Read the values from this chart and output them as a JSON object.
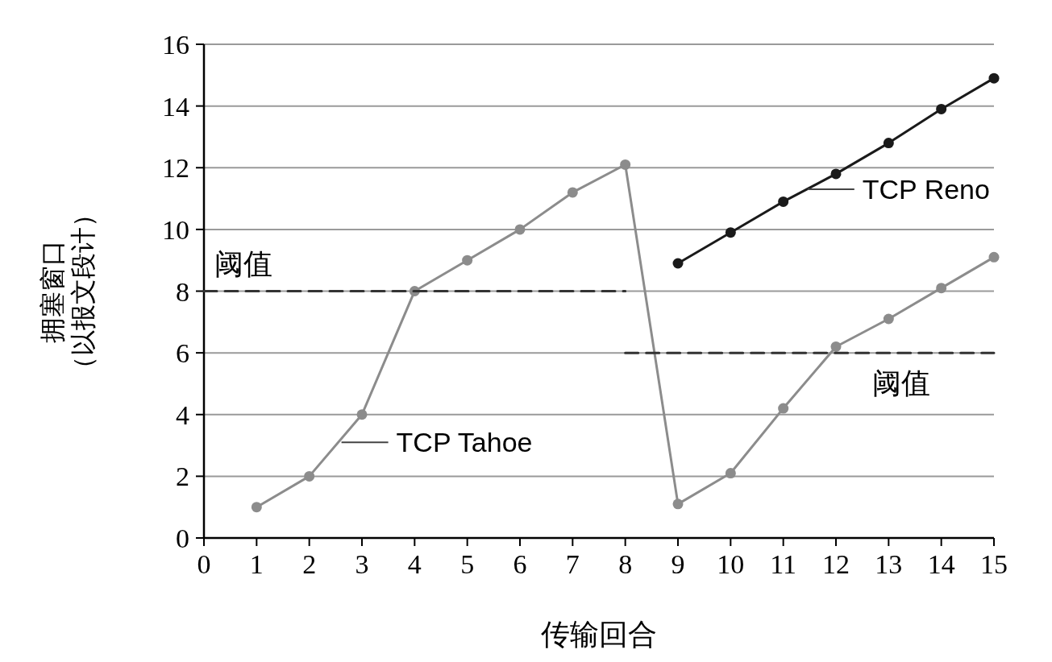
{
  "chart_data": {
    "type": "line",
    "xlabel": "传输回合",
    "ylabel": "拥塞窗口（以报文段计）",
    "xlim": [
      0,
      15
    ],
    "xticks": [
      0,
      1,
      2,
      3,
      4,
      5,
      6,
      7,
      8,
      9,
      10,
      11,
      12,
      13,
      14,
      15
    ],
    "ylim": [
      0,
      16
    ],
    "yticks": [
      0,
      2,
      4,
      6,
      8,
      10,
      12,
      14,
      16
    ],
    "grid": "y",
    "marker": "circle",
    "series": [
      {
        "color": "#8c8c8c",
        "x": [
          1,
          2,
          3,
          4,
          5,
          6,
          7,
          8,
          9,
          10,
          11,
          12,
          13,
          14,
          15
        ],
        "values": [
          1,
          2,
          4,
          8,
          9,
          10,
          11.2,
          12.1,
          1.1,
          2.1,
          4.2,
          6.2,
          7.1,
          8.1,
          9.1
        ]
      },
      {
        "color": "#1a1a1a",
        "x": [
          9,
          10,
          11,
          12,
          13,
          14,
          15
        ],
        "values": [
          8.9,
          9.9,
          10.9,
          11.8,
          12.8,
          13.9,
          14.9
        ]
      },
      {
        "color": "#333333",
        "x": [
          0,
          8
        ],
        "values": [
          8,
          8
        ],
        "line_style": "dashed",
        "marker": "none"
      },
      {
        "color": "#333333",
        "x": [
          8,
          15
        ],
        "values": [
          6,
          6
        ],
        "line_style": "dashed",
        "marker": "none"
      }
    ],
    "annotations": [
      {
        "text": "阈值",
        "x": 0.5,
        "y": 8
      },
      {
        "text": "TCP Tahoe",
        "x": 2.55,
        "y": 3.1
      },
      {
        "text": "TCP Reno",
        "x": 11.4,
        "y": 11.3
      },
      {
        "text": "阈值",
        "x": 13,
        "y": 6
      }
    ]
  }
}
